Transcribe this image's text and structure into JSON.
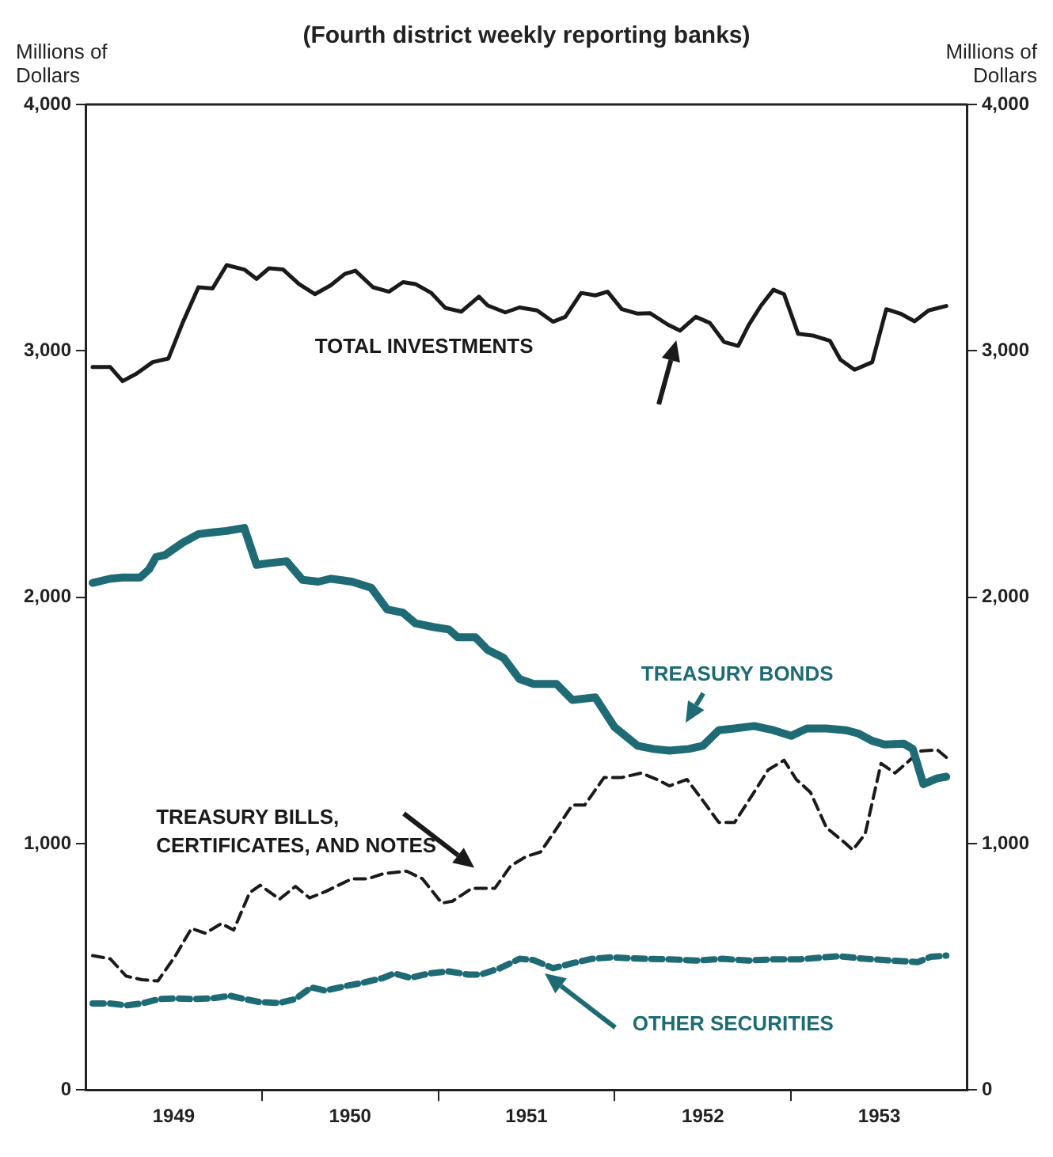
{
  "chart_data": {
    "type": "line",
    "title": "(Fourth district weekly reporting banks)",
    "ylabel": "Millions of Dollars",
    "y2label": "Millions of Dollars",
    "xlim": [
      1949,
      1954
    ],
    "xticks": [
      {
        "value": 1949.5,
        "label": "1949"
      },
      {
        "value": 1950,
        "label": null
      },
      {
        "value": 1950.5,
        "label": "1950"
      },
      {
        "value": 1951,
        "label": null
      },
      {
        "value": 1951.5,
        "label": "1951"
      },
      {
        "value": 1952,
        "label": null
      },
      {
        "value": 1952.5,
        "label": "1952"
      },
      {
        "value": 1953,
        "label": null
      },
      {
        "value": 1953.5,
        "label": "1953"
      }
    ],
    "ylim": [
      0,
      4000
    ],
    "yticks": [
      0,
      {
        "value": 1000,
        "label": "1,000"
      },
      {
        "value": 2000,
        "label": "2,000"
      },
      {
        "value": 3000,
        "label": "3,000"
      },
      {
        "value": 4000,
        "label": "4,000"
      }
    ],
    "y2lim": [
      0,
      4000
    ],
    "y2ticks": [
      0,
      {
        "value": 1000,
        "label": "1,000"
      },
      {
        "value": 2000,
        "label": "2,000"
      },
      {
        "value": 3000,
        "label": "3,000"
      },
      {
        "value": 4000,
        "label": "4,000"
      }
    ],
    "grid": false,
    "legend": false,
    "marker": "none",
    "series": [
      {
        "name": "TOTAL INVESTMENTS",
        "color": "#1a1a1a",
        "line_style": "solid",
        "x": [
          1949.04,
          1949.14,
          1949.21,
          1949.29,
          1949.38,
          1949.47,
          1949.55,
          1949.64,
          1949.72,
          1949.8,
          1949.9,
          1949.97,
          1950.04,
          1950.12,
          1950.21,
          1950.3,
          1950.39,
          1950.47,
          1950.53,
          1950.63,
          1950.72,
          1950.8,
          1950.87,
          1950.96,
          1951.04,
          1951.13,
          1951.23,
          1951.28,
          1951.38,
          1951.46,
          1951.56,
          1951.65,
          1951.72,
          1951.81,
          1951.89,
          1951.96,
          1952.04,
          1952.13,
          1952.2,
          1952.3,
          1952.37,
          1952.46,
          1952.54,
          1952.62,
          1952.7,
          1952.76,
          1952.83,
          1952.9,
          1952.96,
          1953.04,
          1953.13,
          1953.22,
          1953.28,
          1953.36,
          1953.46,
          1953.54,
          1953.62,
          1953.7,
          1953.78,
          1953.88
        ],
        "values": [
          2934,
          2934,
          2877,
          2908,
          2954,
          2969,
          3113,
          3258,
          3253,
          3348,
          3330,
          3292,
          3335,
          3330,
          3271,
          3230,
          3266,
          3312,
          3325,
          3258,
          3240,
          3279,
          3271,
          3235,
          3174,
          3159,
          3220,
          3184,
          3156,
          3176,
          3164,
          3118,
          3138,
          3235,
          3225,
          3240,
          3169,
          3151,
          3153,
          3107,
          3082,
          3138,
          3113,
          3036,
          3020,
          3105,
          3184,
          3248,
          3230,
          3069,
          3061,
          3041,
          2964,
          2923,
          2954,
          3169,
          3151,
          3120,
          3164,
          3182
        ]
      },
      {
        "name": "TREASURY BONDS",
        "color": "#1e6b75",
        "line_style": "solid",
        "x": [
          1949.04,
          1949.14,
          1949.21,
          1949.31,
          1949.36,
          1949.4,
          1949.45,
          1949.55,
          1949.64,
          1949.73,
          1949.8,
          1949.9,
          1949.97,
          1950.04,
          1950.14,
          1950.23,
          1950.32,
          1950.39,
          1950.51,
          1950.62,
          1950.71,
          1950.8,
          1950.87,
          1950.97,
          1951.06,
          1951.11,
          1951.21,
          1951.28,
          1951.37,
          1951.46,
          1951.54,
          1951.67,
          1951.76,
          1951.89,
          1952.0,
          1952.13,
          1952.22,
          1952.31,
          1952.42,
          1952.5,
          1952.59,
          1952.68,
          1952.79,
          1952.9,
          1953.0,
          1953.09,
          1953.2,
          1953.31,
          1953.38,
          1953.46,
          1953.53,
          1953.64,
          1953.69,
          1953.75,
          1953.83,
          1953.88
        ],
        "values": [
          2058,
          2075,
          2080,
          2080,
          2113,
          2163,
          2171,
          2221,
          2256,
          2264,
          2269,
          2281,
          2131,
          2138,
          2146,
          2070,
          2063,
          2075,
          2063,
          2038,
          1950,
          1937,
          1894,
          1879,
          1869,
          1837,
          1837,
          1786,
          1754,
          1668,
          1648,
          1648,
          1583,
          1593,
          1472,
          1397,
          1384,
          1377,
          1384,
          1397,
          1460,
          1467,
          1477,
          1460,
          1437,
          1467,
          1467,
          1460,
          1447,
          1417,
          1402,
          1405,
          1384,
          1241,
          1265,
          1271
        ]
      },
      {
        "name": "TREASURY BILLS, CERTIFICATES, AND NOTES",
        "color": "#1a1a1a",
        "line_style": "dashed",
        "x": [
          1949.04,
          1949.14,
          1949.23,
          1949.32,
          1949.41,
          1949.51,
          1949.6,
          1949.68,
          1949.77,
          1949.84,
          1949.93,
          1949.99,
          1950.1,
          1950.19,
          1950.27,
          1950.36,
          1950.51,
          1950.6,
          1950.69,
          1950.82,
          1950.91,
          1951.02,
          1951.08,
          1951.19,
          1951.32,
          1951.41,
          1951.5,
          1951.58,
          1951.65,
          1951.76,
          1951.83,
          1951.94,
          1952.04,
          1952.15,
          1952.24,
          1952.31,
          1952.41,
          1952.5,
          1952.59,
          1952.68,
          1952.79,
          1952.87,
          1952.96,
          1953.03,
          1953.11,
          1953.2,
          1953.31,
          1953.35,
          1953.42,
          1953.51,
          1953.59,
          1953.66,
          1953.73,
          1953.83,
          1953.88
        ],
        "values": [
          545,
          532,
          462,
          447,
          442,
          545,
          655,
          636,
          675,
          649,
          800,
          831,
          774,
          826,
          779,
          805,
          857,
          857,
          878,
          888,
          857,
          758,
          766,
          818,
          818,
          909,
          948,
          966,
          1039,
          1156,
          1156,
          1268,
          1268,
          1286,
          1260,
          1234,
          1260,
          1174,
          1086,
          1086,
          1208,
          1299,
          1338,
          1260,
          1208,
          1065,
          1000,
          974,
          1039,
          1325,
          1286,
          1330,
          1375,
          1380,
          1350
        ]
      },
      {
        "name": "OTHER SECURITIES",
        "color": "#1e6b75",
        "line_style": "dashed",
        "x": [
          1949.04,
          1949.14,
          1949.23,
          1949.32,
          1949.42,
          1949.51,
          1949.6,
          1949.71,
          1949.82,
          1949.9,
          1949.99,
          1950.1,
          1950.19,
          1950.28,
          1950.36,
          1950.47,
          1950.58,
          1950.69,
          1950.75,
          1950.84,
          1950.95,
          1951.06,
          1951.17,
          1951.24,
          1951.35,
          1951.46,
          1951.54,
          1951.65,
          1951.76,
          1951.87,
          1951.98,
          1952.17,
          1952.31,
          1952.46,
          1952.61,
          1952.76,
          1952.9,
          1953.05,
          1953.27,
          1953.42,
          1953.57,
          1953.72,
          1953.79,
          1953.88
        ],
        "values": [
          351,
          351,
          343,
          351,
          369,
          371,
          369,
          371,
          382,
          369,
          356,
          353,
          369,
          416,
          403,
          421,
          436,
          455,
          473,
          455,
          473,
          481,
          468,
          468,
          494,
          532,
          527,
          494,
          514,
          532,
          538,
          532,
          530,
          525,
          532,
          525,
          530,
          530,
          543,
          532,
          525,
          519,
          540,
          545
        ]
      }
    ]
  }
}
